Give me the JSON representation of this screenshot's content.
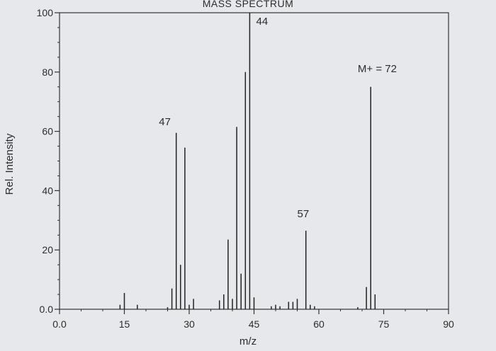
{
  "chart_data": {
    "type": "bar",
    "title": "MASS SPECTRUM",
    "xlabel": "m/z",
    "ylabel": "Rel. Intensity",
    "xlim": [
      0,
      90
    ],
    "ylim": [
      0,
      100
    ],
    "grid": false,
    "x_ticks": [
      {
        "value": 0,
        "label": "0.0"
      },
      {
        "value": 15,
        "label": "15"
      },
      {
        "value": 30,
        "label": "30"
      },
      {
        "value": 45,
        "label": "45"
      },
      {
        "value": 60,
        "label": "60"
      },
      {
        "value": 75,
        "label": "75"
      },
      {
        "value": 90,
        "label": "90"
      }
    ],
    "y_ticks": [
      {
        "value": 0,
        "label": "0.0"
      },
      {
        "value": 20,
        "label": "20"
      },
      {
        "value": 40,
        "label": "40"
      },
      {
        "value": 60,
        "label": "60"
      },
      {
        "value": 80,
        "label": "80"
      },
      {
        "value": 100,
        "label": "100"
      }
    ],
    "peaks": [
      {
        "x": 14,
        "y": 1.5
      },
      {
        "x": 15,
        "y": 5.5
      },
      {
        "x": 18,
        "y": 1.5
      },
      {
        "x": 25,
        "y": 0.7
      },
      {
        "x": 26,
        "y": 7
      },
      {
        "x": 27,
        "y": 59.5
      },
      {
        "x": 28,
        "y": 15
      },
      {
        "x": 29,
        "y": 54.5
      },
      {
        "x": 30,
        "y": 1.5
      },
      {
        "x": 31,
        "y": 3.5
      },
      {
        "x": 37,
        "y": 3
      },
      {
        "x": 38,
        "y": 5
      },
      {
        "x": 39,
        "y": 23.5
      },
      {
        "x": 40,
        "y": 3.5
      },
      {
        "x": 41,
        "y": 61.5
      },
      {
        "x": 42,
        "y": 12
      },
      {
        "x": 43,
        "y": 80
      },
      {
        "x": 44,
        "y": 100
      },
      {
        "x": 45,
        "y": 4
      },
      {
        "x": 49,
        "y": 1
      },
      {
        "x": 50,
        "y": 1.5
      },
      {
        "x": 51,
        "y": 1
      },
      {
        "x": 53,
        "y": 2.5
      },
      {
        "x": 54,
        "y": 2.5
      },
      {
        "x": 55,
        "y": 3.5
      },
      {
        "x": 57,
        "y": 26.5
      },
      {
        "x": 58,
        "y": 1.5
      },
      {
        "x": 59,
        "y": 1
      },
      {
        "x": 69,
        "y": 0.7
      },
      {
        "x": 71,
        "y": 7.5
      },
      {
        "x": 72,
        "y": 75
      },
      {
        "x": 73,
        "y": 5
      }
    ],
    "annotations": [
      {
        "text": "44",
        "x": 45.5,
        "y": 96
      },
      {
        "text": "47",
        "x": 23,
        "y": 62
      },
      {
        "text": "57",
        "x": 55,
        "y": 31
      },
      {
        "text": "M+ = 72",
        "x": 69,
        "y": 80
      }
    ]
  }
}
